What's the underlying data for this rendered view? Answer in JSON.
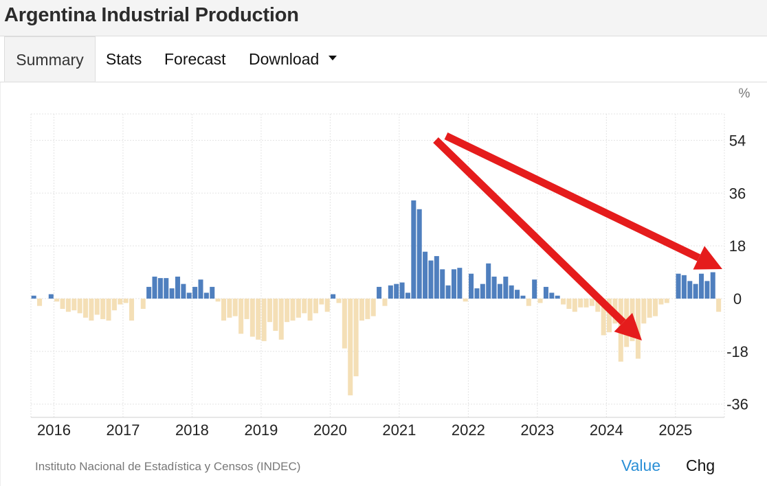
{
  "header": {
    "title": "Argentina Industrial Production"
  },
  "tabs": [
    {
      "label": "Summary",
      "active": true
    },
    {
      "label": "Stats"
    },
    {
      "label": "Forecast"
    },
    {
      "label": "Download"
    }
  ],
  "footer": {
    "source": "Instituto Nacional de Estadística y Censos (INDEC)",
    "value_label": "Value",
    "chg_label": "Chg"
  },
  "colors": {
    "positive": "#4f7fbe",
    "negative": "#f4dfb6",
    "value_link": "#2a8fd6",
    "arrow": "#e51c1c"
  },
  "chart_data": {
    "type": "bar",
    "unit": "%",
    "y_ticks": [
      54,
      36,
      18,
      0,
      -18,
      -36
    ],
    "ylim": [
      -42,
      64
    ],
    "x_ticks": [
      "2016",
      "2017",
      "2018",
      "2019",
      "2020",
      "2021",
      "2022",
      "2023",
      "2024",
      "2025"
    ],
    "start": "2015-09",
    "end": "2025-08",
    "months": [
      "2015-09",
      "2015-10",
      "2015-11",
      "2015-12",
      "2016-01",
      "2016-02",
      "2016-03",
      "2016-04",
      "2016-05",
      "2016-06",
      "2016-07",
      "2016-08",
      "2016-09",
      "2016-10",
      "2016-11",
      "2016-12",
      "2017-01",
      "2017-02",
      "2017-03",
      "2017-04",
      "2017-05",
      "2017-06",
      "2017-07",
      "2017-08",
      "2017-09",
      "2017-10",
      "2017-11",
      "2017-12",
      "2018-01",
      "2018-02",
      "2018-03",
      "2018-04",
      "2018-05",
      "2018-06",
      "2018-07",
      "2018-08",
      "2018-09",
      "2018-10",
      "2018-11",
      "2018-12",
      "2019-01",
      "2019-02",
      "2019-03",
      "2019-04",
      "2019-05",
      "2019-06",
      "2019-07",
      "2019-08",
      "2019-09",
      "2019-10",
      "2019-11",
      "2019-12",
      "2020-01",
      "2020-02",
      "2020-03",
      "2020-04",
      "2020-05",
      "2020-06",
      "2020-07",
      "2020-08",
      "2020-09",
      "2020-10",
      "2020-11",
      "2020-12",
      "2021-01",
      "2021-02",
      "2021-03",
      "2021-04",
      "2021-05",
      "2021-06",
      "2021-07",
      "2021-08",
      "2021-09",
      "2021-10",
      "2021-11",
      "2021-12",
      "2022-01",
      "2022-02",
      "2022-03",
      "2022-04",
      "2022-05",
      "2022-06",
      "2022-07",
      "2022-08",
      "2022-09",
      "2022-10",
      "2022-11",
      "2022-12",
      "2023-01",
      "2023-02",
      "2023-03",
      "2023-04",
      "2023-05",
      "2023-06",
      "2023-07",
      "2023-08",
      "2023-09",
      "2023-10",
      "2023-11",
      "2023-12",
      "2024-01",
      "2024-02",
      "2024-03",
      "2024-04",
      "2024-05",
      "2024-06",
      "2024-07",
      "2024-08",
      "2024-09",
      "2024-10",
      "2024-11",
      "2024-12",
      "2025-01",
      "2025-02",
      "2025-03",
      "2025-04",
      "2025-05",
      "2025-06",
      "2025-07",
      "2025-08"
    ],
    "values": [
      1.0,
      -2.5,
      0,
      1.5,
      -1.0,
      -3.5,
      -4.5,
      -4.0,
      -5.0,
      -6.5,
      -7.5,
      -5.5,
      -7.0,
      -7.5,
      -4.0,
      -2.0,
      -1.5,
      -7.5,
      0,
      -3.5,
      4.0,
      7.5,
      7.0,
      7.0,
      3.5,
      7.5,
      5.0,
      2.0,
      4.0,
      6.5,
      2.0,
      4.0,
      -1.0,
      -7.5,
      -6.5,
      -6.0,
      -12.0,
      -7.0,
      -13.0,
      -14.0,
      -14.5,
      -8.0,
      -11.0,
      -14.0,
      -8.0,
      -7.5,
      -6.5,
      -5.0,
      -7.5,
      -5.0,
      -2.0,
      -4.5,
      1.5,
      -1.5,
      -17.0,
      -33.0,
      -26.5,
      -7.5,
      -7.0,
      -6.0,
      4.0,
      -2.5,
      4.5,
      5.0,
      5.5,
      2.0,
      33.5,
      30.5,
      16.0,
      13.0,
      14.5,
      10.0,
      4.5,
      10.0,
      10.5,
      -1.0,
      8.5,
      3.5,
      5.0,
      12.0,
      7.5,
      5.0,
      7.5,
      4.5,
      3.0,
      1.0,
      -2.5,
      6.5,
      -1.5,
      4.0,
      2.0,
      1.0,
      -2.0,
      -3.5,
      -4.5,
      -3.0,
      -3.0,
      -2.5,
      -4.5,
      -12.5,
      -11.5,
      -8.5,
      -21.5,
      -16.5,
      -14.5,
      -20.5,
      -8.5,
      -6.5,
      -6.0,
      -2.0,
      -1.5,
      0,
      8.5,
      8.0,
      6.0,
      5.0,
      8.5,
      6.0,
      9.0,
      -4.5
    ]
  }
}
